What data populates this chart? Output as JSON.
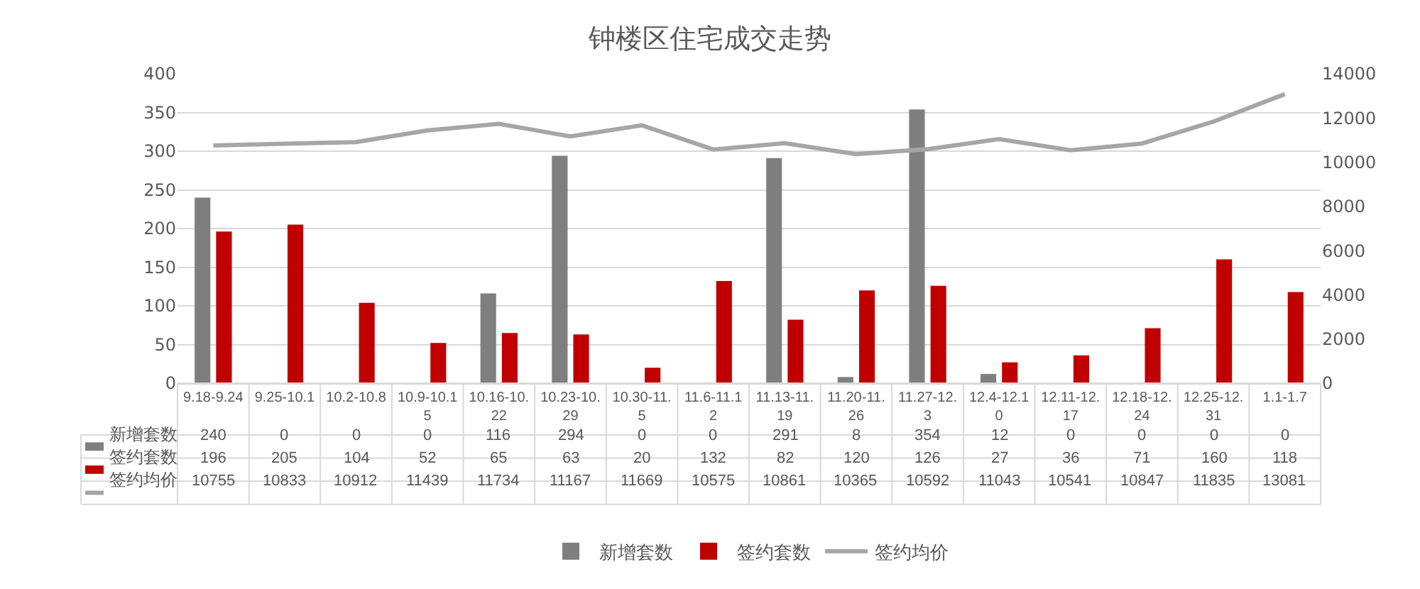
{
  "chart_data": {
    "type": "bar",
    "title": "钟楼区住宅成交走势",
    "categories": [
      "9.18-9.24",
      "9.25-10.1",
      "10.2-10.8",
      "10.9-10.15",
      "10.16-10.22",
      "10.23-10.29",
      "10.30-11.5",
      "11.6-11.12",
      "11.13-11.19",
      "11.20-11.26",
      "11.27-12.3",
      "12.4-12.10",
      "12.11-12.17",
      "12.18-12.24",
      "12.25-12.31",
      "1.1-1.7"
    ],
    "series": [
      {
        "name": "新增套数",
        "color": "#7f7f7f",
        "values": [
          240,
          0,
          0,
          0,
          116,
          294,
          0,
          0,
          291,
          8,
          354,
          12,
          0,
          0,
          0,
          0
        ]
      },
      {
        "name": "签约套数",
        "color": "#c00000",
        "values": [
          196,
          205,
          104,
          52,
          65,
          63,
          20,
          132,
          82,
          120,
          126,
          27,
          36,
          71,
          160,
          118
        ]
      },
      {
        "name": "签约均价",
        "type": "line",
        "axis": "y2",
        "color": "#a6a6a6",
        "values": [
          10755,
          10833,
          10912,
          11439,
          11734,
          11167,
          11669,
          10575,
          10861,
          10365,
          10592,
          11043,
          10541,
          10847,
          11835,
          13081
        ]
      }
    ],
    "ylim": [
      0,
      400
    ],
    "yticks": [
      0,
      50,
      100,
      150,
      200,
      250,
      300,
      350,
      400
    ],
    "y2lim": [
      0,
      14000
    ],
    "y2ticks": [
      0,
      2000,
      4000,
      6000,
      8000,
      10000,
      12000,
      14000
    ],
    "grid": "y",
    "legend": "bottom",
    "data_labels": true
  }
}
